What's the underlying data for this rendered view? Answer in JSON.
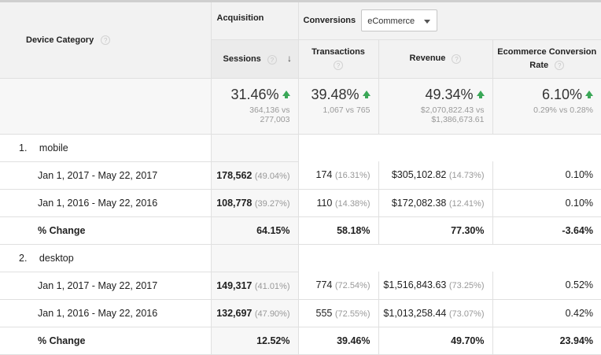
{
  "header": {
    "device_category": "Device Category",
    "acquisition": "Acquisition",
    "conversions": "Conversions",
    "conversions_select": "eCommerce",
    "help_glyph": "?",
    "sort_arrow": "↓",
    "columns": {
      "sessions": "Sessions",
      "transactions": "Transactions",
      "revenue": "Revenue",
      "ecr_line1": "Ecommerce Conversion",
      "ecr_line2": "Rate"
    }
  },
  "summary": {
    "sessions": {
      "change": "31.46%",
      "detail1": "364,136 vs",
      "detail2": "277,003"
    },
    "transactions": {
      "change": "39.48%",
      "detail1": "1,067 vs 765"
    },
    "revenue": {
      "change": "49.34%",
      "detail1": "$2,070,822.43 vs",
      "detail2": "$1,386,673.61"
    },
    "ecr": {
      "change": "6.10%",
      "detail1": "0.29% vs 0.28%"
    }
  },
  "groups": [
    {
      "index": "1.",
      "name": "mobile",
      "rows": [
        {
          "label": "Jan 1, 2017 - May 22, 2017",
          "sessions": "178,562",
          "sessions_pct": "(49.04%)",
          "transactions": "174",
          "transactions_pct": "(16.31%)",
          "revenue": "$305,102.82",
          "revenue_pct": "(14.73%)",
          "ecr": "0.10%"
        },
        {
          "label": "Jan 1, 2016 - May 22, 2016",
          "sessions": "108,778",
          "sessions_pct": "(39.27%)",
          "transactions": "110",
          "transactions_pct": "(14.38%)",
          "revenue": "$172,082.38",
          "revenue_pct": "(12.41%)",
          "ecr": "0.10%"
        }
      ],
      "change": {
        "label": "% Change",
        "sessions": "64.15%",
        "transactions": "58.18%",
        "revenue": "77.30%",
        "ecr": "-3.64%"
      }
    },
    {
      "index": "2.",
      "name": "desktop",
      "rows": [
        {
          "label": "Jan 1, 2017 - May 22, 2017",
          "sessions": "149,317",
          "sessions_pct": "(41.01%)",
          "transactions": "774",
          "transactions_pct": "(72.54%)",
          "revenue": "$1,516,843.63",
          "revenue_pct": "(73.25%)",
          "ecr": "0.52%"
        },
        {
          "label": "Jan 1, 2016 - May 22, 2016",
          "sessions": "132,697",
          "sessions_pct": "(47.90%)",
          "transactions": "555",
          "transactions_pct": "(72.55%)",
          "revenue": "$1,013,258.44",
          "revenue_pct": "(73.07%)",
          "ecr": "0.42%"
        }
      ],
      "change": {
        "label": "% Change",
        "sessions": "12.52%",
        "transactions": "39.46%",
        "revenue": "49.70%",
        "ecr": "23.94%"
      }
    }
  ],
  "colors": {
    "up_arrow": "#3aa757",
    "header_bg": "#f2f2f2",
    "grid": "#e0e0e0"
  }
}
